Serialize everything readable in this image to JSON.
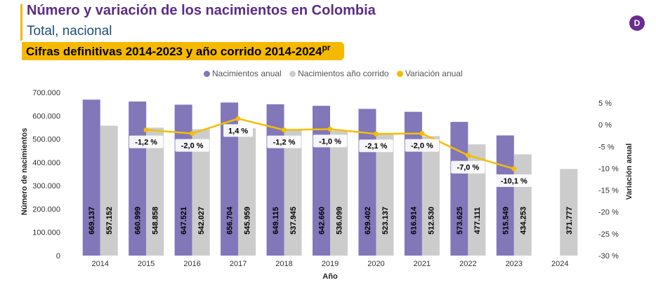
{
  "header": {
    "title": "Número y variación de los nacimientos en Colombia",
    "subtitle": "Total, nacional",
    "banner": "Cifras definitivas 2014-2023 y año corrido 2014-2024",
    "banner_sup": "pr",
    "logo_letter": "D"
  },
  "colors": {
    "anual": "#8277b9",
    "corrido": "#cccccc",
    "variacion": "#f4be00",
    "accent": "#f2b705",
    "title": "#5b2d87",
    "subtitle": "#1f4e79"
  },
  "chart_data": {
    "type": "bar",
    "xlabel": "Año",
    "ylabel": "Número de nacimientos",
    "y2label": "Variación anual",
    "ylim": [
      0,
      700000
    ],
    "y2lim": [
      -30,
      5
    ],
    "yticks": [
      "0",
      "100.000",
      "200.000",
      "300.000",
      "400.000",
      "500.000",
      "600.000",
      "700.000"
    ],
    "y2ticks": [
      "-30 %",
      "-25 %",
      "-20 %",
      "-15 %",
      "-10 %",
      "-5 %",
      "0 %",
      "5 %"
    ],
    "legend_position": "top",
    "categories": [
      "2014",
      "2015",
      "2016",
      "2017",
      "2018",
      "2019",
      "2020",
      "2021",
      "2022",
      "2023",
      "2024"
    ],
    "series": [
      {
        "name": "Nacimientos anual",
        "type": "bar",
        "values": [
          669137,
          660999,
          647521,
          656704,
          649115,
          642660,
          629402,
          616914,
          573625,
          515549,
          null
        ],
        "labels": [
          "669.137",
          "660.999",
          "647.521",
          "656.704",
          "649.115",
          "642.660",
          "629.402",
          "616.914",
          "573.625",
          "515.549",
          ""
        ]
      },
      {
        "name": "Nacimientos año corrido",
        "type": "bar",
        "values": [
          557152,
          548858,
          542027,
          545959,
          537945,
          536099,
          523137,
          512530,
          477111,
          434253,
          371777
        ],
        "labels": [
          "557.152",
          "548.858",
          "542.027",
          "545.959",
          "537.945",
          "536.099",
          "523.137",
          "512.530",
          "477.111",
          "434.253",
          "371.777"
        ]
      },
      {
        "name": "Variación anual",
        "type": "line",
        "axis": "secondary",
        "values": [
          null,
          -1.2,
          -2.0,
          1.4,
          -1.2,
          -1.0,
          -2.1,
          -2.0,
          -7.0,
          -10.1,
          null
        ],
        "labels": [
          "",
          "-1,2 %",
          "-2,0 %",
          "1,4 %",
          "-1,2 %",
          "-1,0 %",
          "-2,1 %",
          "-2,0 %",
          "-7,0 %",
          "-10,1 %",
          ""
        ]
      }
    ]
  }
}
